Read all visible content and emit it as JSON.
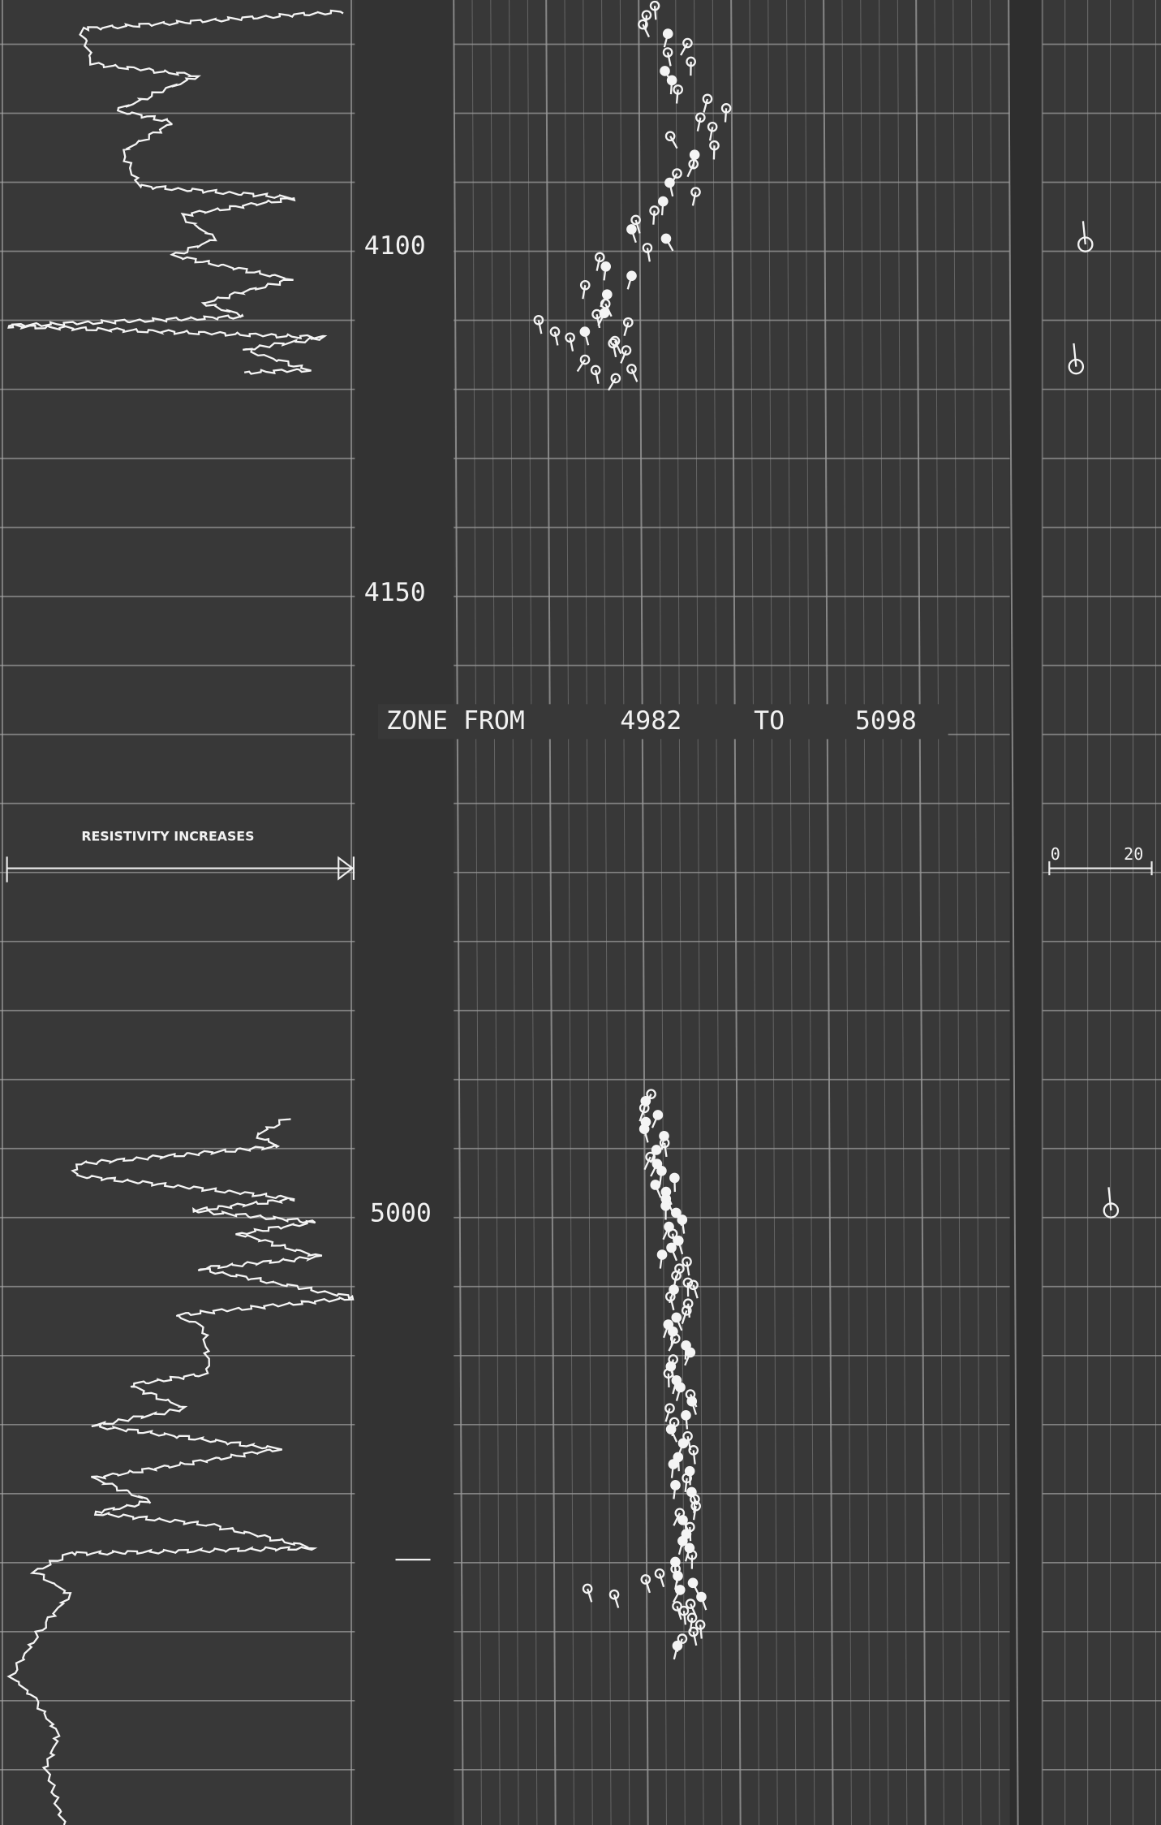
{
  "depth_labels": [
    "4100",
    "4150",
    "5000"
  ],
  "zone": {
    "prefix": "ZONE FROM",
    "from": "4982",
    "connector": "TO",
    "to": "5098"
  },
  "left_track": {
    "label": "RESISTIVITY INCREASES"
  },
  "right_scale": {
    "min": "0",
    "max": "20"
  }
}
